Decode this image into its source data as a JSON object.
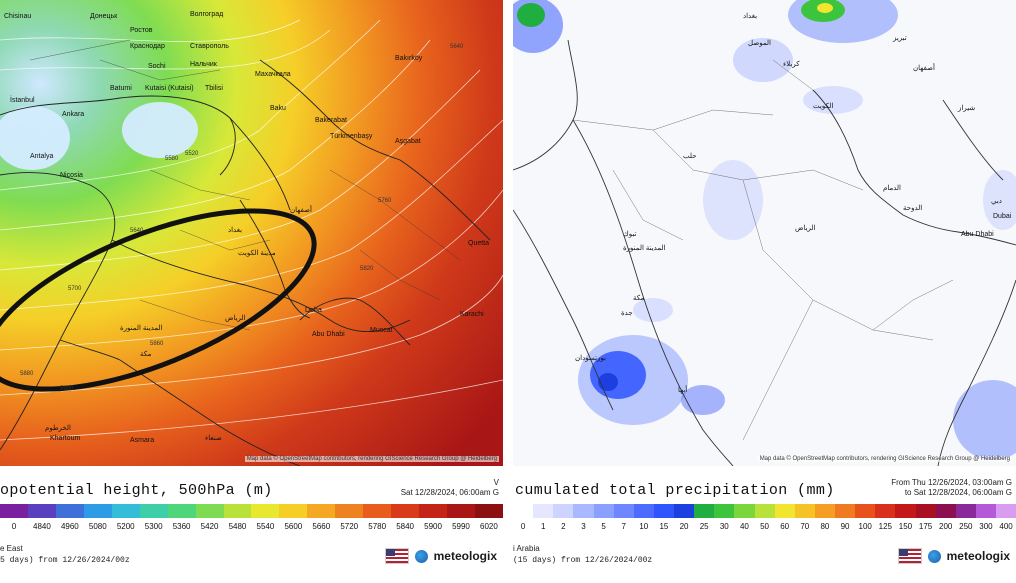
{
  "left": {
    "title": "opotential height, 500hPa (m)",
    "datetime_line1": "V",
    "datetime_line2": "Sat 12/28/2024, 06:00am G",
    "attribution": "Map data © OpenStreetMap contributors, rendering GIScience Research Group @ Heidelberg",
    "region": "e East",
    "run": "5 days) from 12/26/2024/00z",
    "brand": "meteologix",
    "scale_ticks": [
      "0",
      "4840",
      "4960",
      "5080",
      "5200",
      "5300",
      "5360",
      "5420",
      "5480",
      "5540",
      "5600",
      "5660",
      "5720",
      "5780",
      "5840",
      "5900",
      "5990",
      "6020"
    ],
    "scale_colors": [
      "#7a1fa0",
      "#5a3fbf",
      "#3f6fd8",
      "#2e9be6",
      "#34bdd8",
      "#3ecfa8",
      "#4fd67a",
      "#7fdc52",
      "#b8e23a",
      "#e8e830",
      "#f5cf28",
      "#f5a823",
      "#ef8220",
      "#e85c1c",
      "#d83a1a",
      "#c42418",
      "#a81616",
      "#8c1010"
    ],
    "map_labels": [
      {
        "text": "Chisinau"
      },
      {
        "text": "Донецьк"
      },
      {
        "text": "Волгоград"
      },
      {
        "text": "Ростов"
      },
      {
        "text": "Краснодар"
      },
      {
        "text": "Ставрополь"
      },
      {
        "text": "Sochi"
      },
      {
        "text": "Нальчик"
      },
      {
        "text": "Махачкала"
      },
      {
        "text": "Batumi"
      },
      {
        "text": "Kutaisi (Kutaisi)"
      },
      {
        "text": "Tbilisi"
      },
      {
        "text": "İstanbul"
      },
      {
        "text": "Ankara"
      },
      {
        "text": "Baku"
      },
      {
        "text": "Bakırköy"
      },
      {
        "text": "Bakerabat"
      },
      {
        "text": "Türkmenbaşy"
      },
      {
        "text": "Aşgabat"
      },
      {
        "text": "Nicosia"
      },
      {
        "text": "Antalya"
      },
      {
        "text": "Doha"
      },
      {
        "text": "Abu Dhabi"
      },
      {
        "text": "Muscat"
      },
      {
        "text": "Quetta"
      },
      {
        "text": "Karachi"
      },
      {
        "text": "Khartoum"
      },
      {
        "text": "Asmara"
      },
      {
        "text": "صنعاء"
      },
      {
        "text": "الرياض"
      },
      {
        "text": "مدينة الكويت"
      },
      {
        "text": "بغداد"
      },
      {
        "text": "أصفهان"
      },
      {
        "text": "الخرطوم"
      },
      {
        "text": "المدينة المنورة"
      },
      {
        "text": "مكة"
      },
      {
        "text": "5580"
      },
      {
        "text": "5640"
      },
      {
        "text": "5700"
      },
      {
        "text": "5760"
      },
      {
        "text": "5820"
      },
      {
        "text": "5860"
      },
      {
        "text": "5880"
      },
      {
        "text": "5900"
      },
      {
        "text": "5520"
      },
      {
        "text": "5640"
      }
    ]
  },
  "right": {
    "title": "cumulated total precipitation (mm)",
    "datetime_line1": "From Thu 12/26/2024, 03:00am G",
    "datetime_line2": "to Sat 12/28/2024, 06:00am G",
    "attribution": "Map data © OpenStreetMap contributors, rendering GIScience Research Group @ Heidelberg",
    "region": "i Arabia",
    "run": "(15 days) from 12/26/2024/00z",
    "brand": "meteologix",
    "scale_ticks": [
      "0",
      "1",
      "2",
      "3",
      "5",
      "7",
      "10",
      "15",
      "20",
      "25",
      "30",
      "40",
      "50",
      "60",
      "70",
      "80",
      "90",
      "100",
      "125",
      "150",
      "175",
      "200",
      "250",
      "300",
      "400"
    ],
    "scale_colors": [
      "#ffffff",
      "#e6e6ff",
      "#ccd4ff",
      "#aab8ff",
      "#8aa0ff",
      "#6e86ff",
      "#4c6cff",
      "#2f55ff",
      "#1e3fe0",
      "#1fae3f",
      "#3cc43c",
      "#7ad63a",
      "#b8e23a",
      "#f2e530",
      "#f5c228",
      "#f59e23",
      "#ef7a20",
      "#e8501c",
      "#d8301a",
      "#c41818",
      "#a81022",
      "#8c1050",
      "#8a2a9a",
      "#b45ad8",
      "#d89cf0"
    ],
    "map_labels": [
      {
        "text": "بغداد"
      },
      {
        "text": "تبريز"
      },
      {
        "text": "أصفهان"
      },
      {
        "text": "شيراز"
      },
      {
        "text": "الكويت"
      },
      {
        "text": "حلب"
      },
      {
        "text": "تبوك"
      },
      {
        "text": "المدينة المنورة"
      },
      {
        "text": "الرياض"
      },
      {
        "text": "الدمام"
      },
      {
        "text": "الدوحة"
      },
      {
        "text": "دبي"
      },
      {
        "text": "Dubai"
      },
      {
        "text": "Abu Dhabi"
      },
      {
        "text": "مكة"
      },
      {
        "text": "جدة"
      },
      {
        "text": "بورتسودان"
      },
      {
        "text": "أبها"
      },
      {
        "text": "كربلاء"
      },
      {
        "text": "الموصل"
      }
    ]
  }
}
